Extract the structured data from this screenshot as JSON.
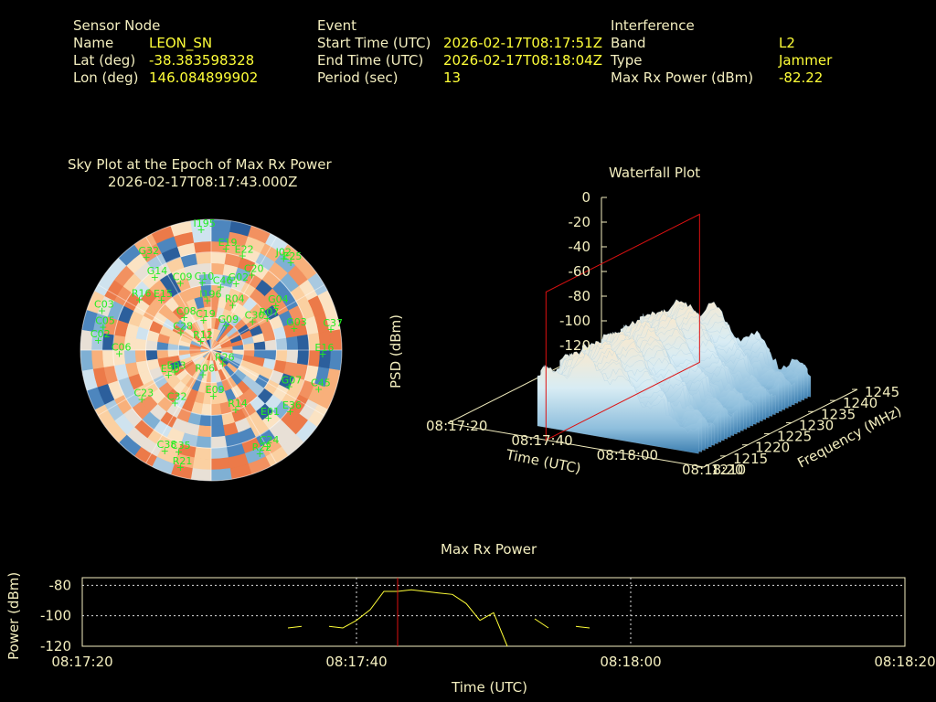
{
  "header": {
    "sensor": {
      "title": "Sensor Node",
      "rows": [
        {
          "k": "Name",
          "v": "LEON_SN"
        },
        {
          "k": "Lat (deg)",
          "v": "-38.383598328"
        },
        {
          "k": "Lon (deg)",
          "v": "146.084899902"
        }
      ]
    },
    "event": {
      "title": "Event",
      "rows": [
        {
          "k": "Start Time (UTC)",
          "v": "2026-02-17T08:17:51Z"
        },
        {
          "k": "End Time (UTC)",
          "v": "2026-02-17T08:18:04Z"
        },
        {
          "k": "Period (sec)",
          "v": "13"
        }
      ]
    },
    "interference": {
      "title": "Interference",
      "rows": [
        {
          "k": "Band",
          "v": "L2"
        },
        {
          "k": "Type",
          "v": "Jammer"
        },
        {
          "k": "Max Rx Power (dBm)",
          "v": "-82.22"
        }
      ]
    }
  },
  "sky": {
    "title": "Sky Plot at the Epoch of Max Rx Power",
    "subtitle": "2026-02-17T08:17:43.000Z",
    "sat_color": "#22ee22",
    "satellites": [
      {
        "id": "I195",
        "az": -5,
        "el": 5
      },
      {
        "id": "G32",
        "az": -35,
        "el": 10
      },
      {
        "id": "E19",
        "az": 8,
        "el": 18
      },
      {
        "id": "E22",
        "az": 18,
        "el": 20
      },
      {
        "id": "J02",
        "az": 38,
        "el": 8
      },
      {
        "id": "E25",
        "az": 42,
        "el": 7
      },
      {
        "id": "G14",
        "az": -38,
        "el": 25
      },
      {
        "id": "C20",
        "az": 28,
        "el": 30
      },
      {
        "id": "C09",
        "az": -25,
        "el": 38
      },
      {
        "id": "C10",
        "az": -8,
        "el": 42
      },
      {
        "id": "C46",
        "az": 8,
        "el": 45
      },
      {
        "id": "G02",
        "az": 20,
        "el": 40
      },
      {
        "id": "C03",
        "az": -70,
        "el": 8
      },
      {
        "id": "R16",
        "az": -55,
        "el": 28
      },
      {
        "id": "E15",
        "az": -45,
        "el": 40
      },
      {
        "id": "I196",
        "az": -5,
        "el": 55
      },
      {
        "id": "R04",
        "az": 25,
        "el": 55
      },
      {
        "id": "G04",
        "az": 55,
        "el": 35
      },
      {
        "id": "C05",
        "az": -78,
        "el": 12
      },
      {
        "id": "C02",
        "az": -85,
        "el": 10
      },
      {
        "id": "C06",
        "az": -92,
        "el": 25
      },
      {
        "id": "C08",
        "az": -40,
        "el": 60
      },
      {
        "id": "C19",
        "az": -15,
        "el": 68
      },
      {
        "id": "G09",
        "az": 30,
        "el": 70
      },
      {
        "id": "C30",
        "az": 55,
        "el": 55
      },
      {
        "id": "R07",
        "az": 60,
        "el": 45
      },
      {
        "id": "G03",
        "az": 75,
        "el": 30
      },
      {
        "id": "C37",
        "az": 80,
        "el": 5
      },
      {
        "id": "C28",
        "az": -60,
        "el": 65
      },
      {
        "id": "R12",
        "az": -50,
        "el": 80
      },
      {
        "id": "E16",
        "az": 92,
        "el": 12
      },
      {
        "id": "E03",
        "az": -120,
        "el": 60
      },
      {
        "id": "E30",
        "az": -120,
        "el": 55
      },
      {
        "id": "R06",
        "az": -160,
        "el": 72
      },
      {
        "id": "R26",
        "az": 140,
        "el": 78
      },
      {
        "id": "C23",
        "az": -125,
        "el": 30
      },
      {
        "id": "C32",
        "az": -145,
        "el": 45
      },
      {
        "id": "G07",
        "az": 115,
        "el": 30
      },
      {
        "id": "C45",
        "az": 110,
        "el": 10
      },
      {
        "id": "E09",
        "az": 178,
        "el": 58
      },
      {
        "id": "R14",
        "az": 158,
        "el": 45
      },
      {
        "id": "E01",
        "az": 140,
        "el": 28
      },
      {
        "id": "E36",
        "az": 128,
        "el": 20
      },
      {
        "id": "C35",
        "az": -162,
        "el": 15
      },
      {
        "id": "C38",
        "az": -155,
        "el": 12
      },
      {
        "id": "R21",
        "az": -165,
        "el": 5
      },
      {
        "id": "C24",
        "az": 150,
        "el": 12
      },
      {
        "id": "R22",
        "az": 155,
        "el": 10
      }
    ]
  },
  "waterfall": {
    "title": "Waterfall Plot",
    "zlabel": "PSD (dBm)",
    "xlabel": "Time (UTC)",
    "ylabel": "Frequency (MHz)",
    "zticks": [
      "0",
      "-20",
      "-40",
      "-60",
      "-80",
      "-100",
      "-120"
    ],
    "tticks": [
      "08:17:20",
      "08:17:40",
      "08:18:00",
      "08:18:20"
    ],
    "fticks": [
      "1210",
      "1215",
      "1220",
      "1225",
      "1230",
      "1235",
      "1240",
      "1245"
    ],
    "marker_color": "#dd1111"
  },
  "maxrx": {
    "title": "Max Rx Power",
    "xlabel": "Time (UTC)",
    "ylabel": "Power (dBm)",
    "yticks": [
      "-80",
      "-100",
      "-120"
    ],
    "xticks": [
      "08:17:20",
      "08:17:40",
      "08:18:00",
      "08:18:20"
    ],
    "line_color": "#ffff38",
    "marker_color": "#dd1111"
  },
  "chart_data": [
    {
      "type": "line",
      "title": "Max Rx Power",
      "xlabel": "Time (UTC)",
      "ylabel": "Power (dBm)",
      "xlim": [
        "08:17:20",
        "08:18:20"
      ],
      "ylim": [
        -120,
        -75
      ],
      "grid": true,
      "marker_time": "08:17:43",
      "segments": [
        {
          "x": [
            "08:17:35",
            "08:17:36"
          ],
          "y": [
            -108,
            -107
          ]
        },
        {
          "x": [
            "08:17:38",
            "08:17:39",
            "08:17:40",
            "08:17:41",
            "08:17:42",
            "08:17:43",
            "08:17:44",
            "08:17:45",
            "08:17:46",
            "08:17:47",
            "08:17:48",
            "08:17:49"
          ],
          "y": [
            -107,
            -108,
            -103,
            -96,
            -84,
            -84,
            -83,
            -84,
            -85,
            -86,
            -92,
            -103
          ]
        },
        {
          "x": [
            "08:17:49",
            "08:17:50",
            "08:17:51"
          ],
          "y": [
            -103,
            -98,
            -120
          ]
        },
        {
          "x": [
            "08:17:53",
            "08:17:54"
          ],
          "y": [
            -102,
            -108
          ]
        },
        {
          "x": [
            "08:17:56",
            "08:17:57"
          ],
          "y": [
            -107,
            -108
          ]
        }
      ]
    },
    {
      "type": "area",
      "title": "Waterfall Plot",
      "xlabel": "Time (UTC)",
      "ylabel": "Frequency (MHz)",
      "zlabel": "PSD (dBm)",
      "xlim": [
        "08:17:20",
        "08:18:20"
      ],
      "ylim": [
        1210,
        1245
      ],
      "zlim": [
        -120,
        0
      ],
      "marker_time": "08:17:43"
    }
  ]
}
